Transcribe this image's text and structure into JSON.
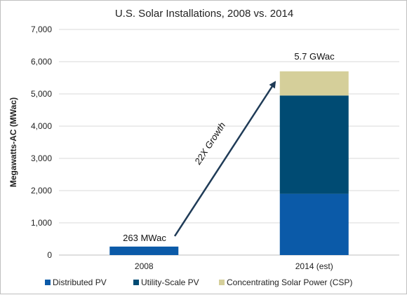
{
  "chart_data": {
    "type": "bar",
    "stacked": true,
    "title": "U.S. Solar Installations, 2008 vs. 2014",
    "ylabel": "Megawatts-AC  (MWac)",
    "xlabel": "",
    "ylim": [
      0,
      7000
    ],
    "yticks": [
      0,
      1000,
      2000,
      3000,
      4000,
      5000,
      6000,
      7000
    ],
    "ytick_labels": [
      "0",
      "1,000",
      "2,000",
      "3,000",
      "4,000",
      "5,000",
      "6,000",
      "7,000"
    ],
    "grid": true,
    "legend_position": "bottom",
    "categories": [
      "2008",
      "2014 (est)"
    ],
    "series": [
      {
        "name": "Distributed PV",
        "values": [
          263,
          1900
        ],
        "color": "#0b5aa8"
      },
      {
        "name": "Utility-Scale PV",
        "values": [
          0,
          3050
        ],
        "color": "#004b73"
      },
      {
        "name": "Concentrating Solar Power (CSP)",
        "values": [
          0,
          750
        ],
        "color": "#d5cf9a"
      }
    ],
    "annotations": {
      "bar_2008": "263 MWac",
      "bar_2014": "5.7 GWac",
      "arrow": "22X Growth"
    }
  }
}
